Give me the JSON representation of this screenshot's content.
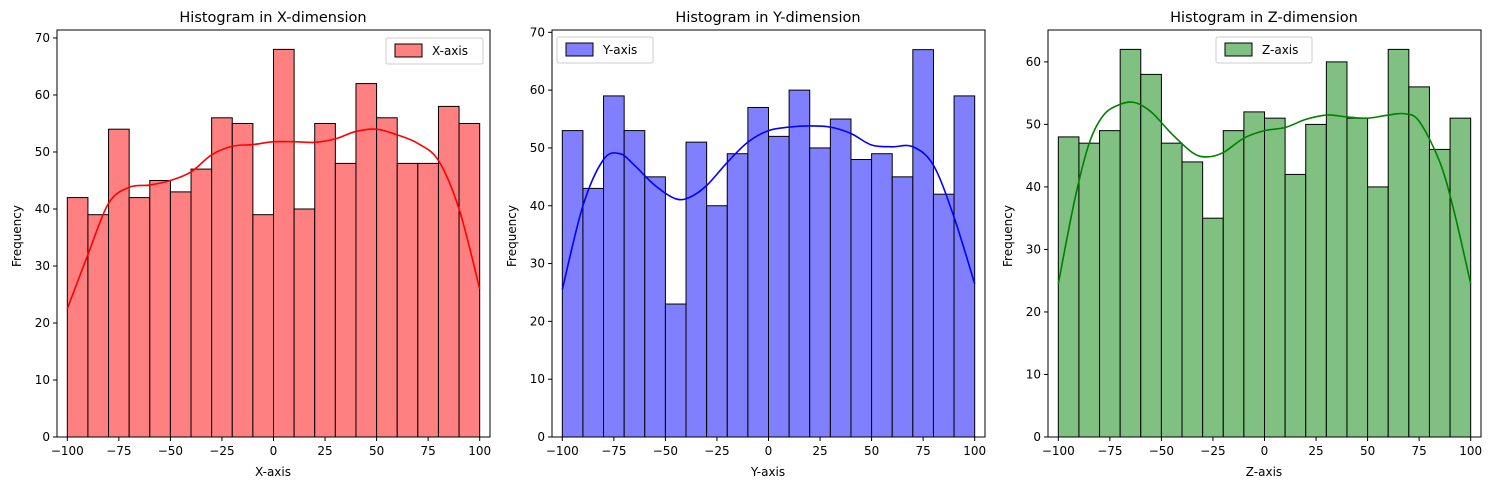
{
  "chart_data": [
    {
      "type": "bar",
      "title": "Histogram in X-dimension",
      "xlabel": "X-axis",
      "ylabel": "Frequency",
      "series": [
        {
          "name": "X-axis",
          "values": [
            42,
            39,
            54,
            42,
            45,
            43,
            47,
            56,
            55,
            39,
            68,
            40,
            55,
            48,
            62,
            56,
            48,
            48,
            58,
            55
          ]
        }
      ],
      "bin_edges": [
        -100,
        100
      ],
      "bins": 20,
      "xlim": [
        -105,
        105
      ],
      "ylim": [
        0,
        71.4
      ],
      "xticks": [
        -100,
        -75,
        -50,
        -25,
        0,
        25,
        50,
        75,
        100
      ],
      "yticks": [
        0,
        10,
        20,
        30,
        40,
        50,
        60,
        70
      ],
      "kde": [
        [
          -100,
          22.5
        ],
        [
          -90,
          32
        ],
        [
          -80,
          41
        ],
        [
          -70,
          43.8
        ],
        [
          -60,
          44.2
        ],
        [
          -50,
          45
        ],
        [
          -40,
          46.5
        ],
        [
          -30,
          49.5
        ],
        [
          -20,
          51
        ],
        [
          -10,
          51.3
        ],
        [
          0,
          51.8
        ],
        [
          10,
          51.8
        ],
        [
          20,
          51.7
        ],
        [
          30,
          52.3
        ],
        [
          40,
          53.6
        ],
        [
          50,
          54
        ],
        [
          60,
          53
        ],
        [
          70,
          51.5
        ],
        [
          80,
          48.5
        ],
        [
          90,
          40
        ],
        [
          100,
          26
        ]
      ],
      "legend": "upper-right",
      "color": "#ff0000",
      "fill": "#ff8080",
      "grid": false
    },
    {
      "type": "bar",
      "title": "Histogram in Y-dimension",
      "xlabel": "Y-axis",
      "ylabel": "Frequency",
      "series": [
        {
          "name": "Y-axis",
          "values": [
            53,
            43,
            59,
            53,
            45,
            23,
            51,
            40,
            49,
            57,
            52,
            60,
            50,
            55,
            48,
            49,
            45,
            67,
            42,
            59
          ]
        }
      ],
      "bin_edges": [
        -100,
        100
      ],
      "bins": 20,
      "xlim": [
        -105,
        105
      ],
      "ylim": [
        0,
        70.4
      ],
      "xticks": [
        -100,
        -75,
        -50,
        -25,
        0,
        25,
        50,
        75,
        100
      ],
      "yticks": [
        0,
        10,
        20,
        30,
        40,
        50,
        60,
        70
      ],
      "kde": [
        [
          -100,
          25.5
        ],
        [
          -90,
          40
        ],
        [
          -80,
          48
        ],
        [
          -72,
          49
        ],
        [
          -65,
          47
        ],
        [
          -55,
          43.5
        ],
        [
          -45,
          41.2
        ],
        [
          -38,
          41.5
        ],
        [
          -30,
          43.5
        ],
        [
          -20,
          47.5
        ],
        [
          -10,
          51
        ],
        [
          0,
          53
        ],
        [
          10,
          53.6
        ],
        [
          20,
          53.8
        ],
        [
          30,
          53.6
        ],
        [
          40,
          52.5
        ],
        [
          50,
          50.5
        ],
        [
          60,
          50.2
        ],
        [
          70,
          50.2
        ],
        [
          80,
          47
        ],
        [
          90,
          38
        ],
        [
          100,
          26.5
        ]
      ],
      "legend": "upper-left",
      "color": "#0000ff",
      "fill": "#8080ff",
      "grid": false
    },
    {
      "type": "bar",
      "title": "Histogram in Z-dimension",
      "xlabel": "Z-axis",
      "ylabel": "Frequency",
      "series": [
        {
          "name": "Z-axis",
          "values": [
            48,
            47,
            49,
            62,
            58,
            47,
            44,
            35,
            49,
            52,
            51,
            42,
            50,
            60,
            51,
            40,
            62,
            56,
            46,
            51
          ]
        }
      ],
      "bin_edges": [
        -100,
        100
      ],
      "bins": 20,
      "xlim": [
        -105,
        105
      ],
      "ylim": [
        0,
        65.1
      ],
      "xticks": [
        -100,
        -75,
        -50,
        -25,
        0,
        25,
        50,
        75,
        100
      ],
      "yticks": [
        0,
        10,
        20,
        30,
        40,
        50,
        60
      ],
      "kde": [
        [
          -100,
          24.5
        ],
        [
          -92,
          38
        ],
        [
          -85,
          47
        ],
        [
          -78,
          51.5
        ],
        [
          -70,
          53.2
        ],
        [
          -63,
          53.5
        ],
        [
          -55,
          52
        ],
        [
          -45,
          48.5
        ],
        [
          -35,
          45.5
        ],
        [
          -28,
          44.8
        ],
        [
          -20,
          45.5
        ],
        [
          -10,
          47.8
        ],
        [
          0,
          49
        ],
        [
          10,
          49.5
        ],
        [
          20,
          50.8
        ],
        [
          30,
          51.5
        ],
        [
          40,
          51.2
        ],
        [
          50,
          51
        ],
        [
          60,
          51.5
        ],
        [
          68,
          51.7
        ],
        [
          75,
          50.5
        ],
        [
          85,
          44
        ],
        [
          92,
          36
        ],
        [
          100,
          24.5
        ]
      ],
      "legend": "upper-center",
      "color": "#008000",
      "fill": "#80c080",
      "grid": false
    }
  ]
}
